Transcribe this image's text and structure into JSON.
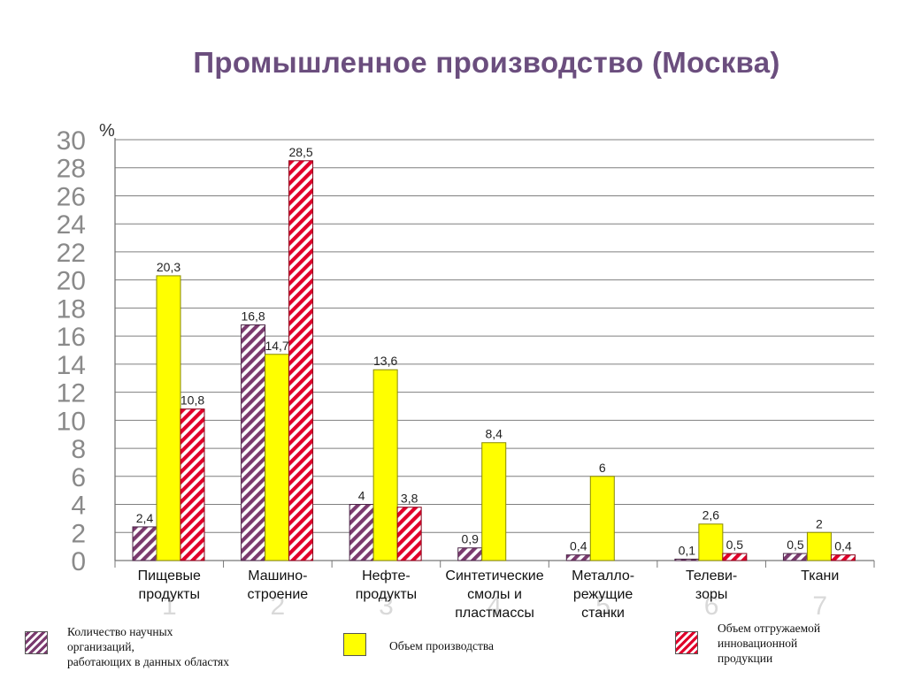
{
  "title": "Промышленное производство (Москва)",
  "chart_data": {
    "type": "bar",
    "ylabel": "%",
    "ylim": [
      0,
      30
    ],
    "yticks": [
      "0",
      "2",
      "4",
      "6",
      "8",
      "10",
      "12",
      "14",
      "16",
      "18",
      "20",
      "22",
      "24",
      "26",
      "28",
      "30"
    ],
    "grid": true,
    "categories": [
      "Пищевые продукты",
      "Машино- строение",
      "Нефте- продукты",
      "Синтетические смолы и пластмассы",
      "Металло- режущие станки",
      "Телеви- зоры",
      "Ткани"
    ],
    "category_numbers": [
      "1",
      "2",
      "3",
      "4",
      "5",
      "6",
      "7"
    ],
    "series": [
      {
        "name": "Количество научных организаций, работающих в данных областях",
        "values": [
          2.4,
          16.8,
          4,
          0.9,
          0.4,
          0.1,
          0.5
        ],
        "labels": [
          "2,4",
          "16,8",
          "4",
          "0,9",
          "0,4",
          "0,1",
          "0,5"
        ],
        "color": "#7a3a6e",
        "pattern": "diagonal-stripes"
      },
      {
        "name": "Объем производства",
        "values": [
          20.3,
          14.7,
          13.6,
          8.4,
          6,
          2.6,
          2
        ],
        "labels": [
          "20,3",
          "14,7",
          "13,6",
          "8,4",
          "6",
          "2,6",
          "2"
        ],
        "color": "#ffff00",
        "pattern": "solid"
      },
      {
        "name": "Объем отгружаемой инновационной продукции",
        "values": [
          10.8,
          28.5,
          3.8,
          null,
          null,
          0.5,
          0.4
        ],
        "labels": [
          "10,8",
          "28,5",
          "3,8",
          "",
          "",
          "0,5",
          "0,4"
        ],
        "color": "#e0002a",
        "pattern": "diagonal-stripes"
      }
    ]
  },
  "legend": [
    {
      "label": "Количество научных\nорганизаций,\nработающих в данных областях"
    },
    {
      "label": "Объем производства"
    },
    {
      "label": "Объем отгружаемой\nинновационной\nпродукции"
    }
  ]
}
